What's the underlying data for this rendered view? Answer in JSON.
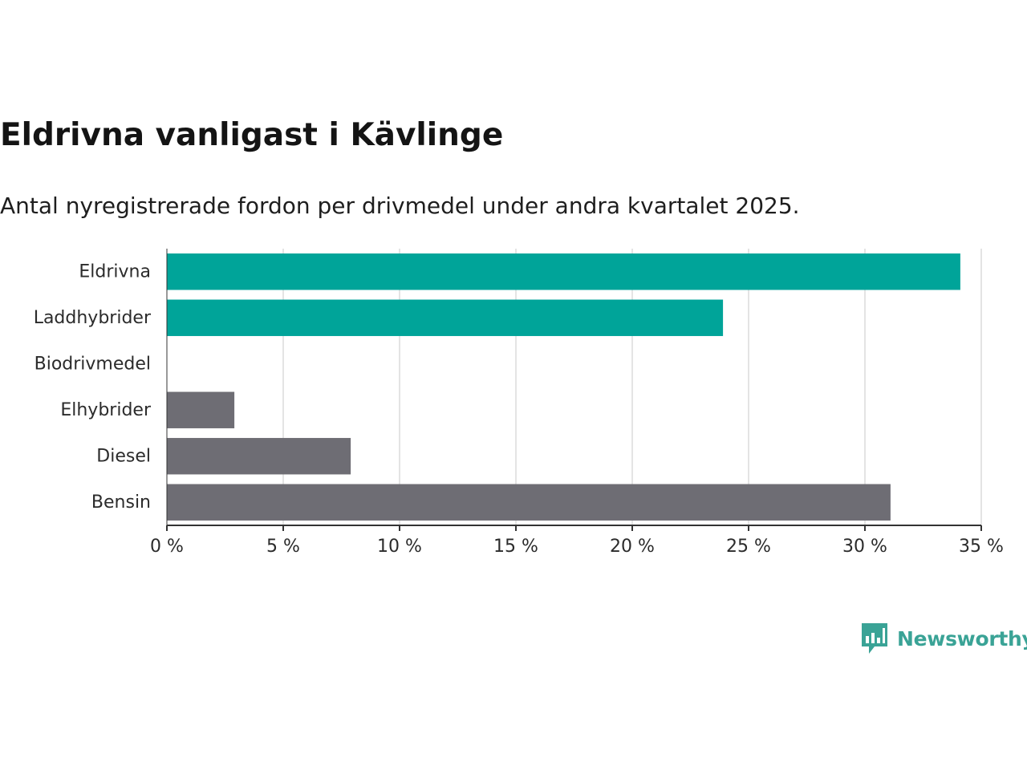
{
  "title": "Eldrivna vanligast i Kävlinge",
  "subtitle": "Antal nyregistrerade fordon per drivmedel under andra kvartalet 2025.",
  "brand": {
    "name": "Newsworthy",
    "logo_icon": "bar-chart-speech-bubble-icon",
    "color": "#3aa396"
  },
  "colors": {
    "highlight": "#00a499",
    "other": "#6e6d74",
    "grid": "#dcdcdc",
    "axis": "#333333"
  },
  "chart_data": {
    "type": "bar",
    "orientation": "horizontal",
    "categories": [
      "Eldrivna",
      "Laddhybrider",
      "Biodrivmedel",
      "Elhybrider",
      "Diesel",
      "Bensin"
    ],
    "values": [
      34.1,
      23.9,
      0,
      2.9,
      7.9,
      31.1
    ],
    "highlight": [
      true,
      true,
      false,
      false,
      false,
      false
    ],
    "xlim": [
      0,
      35
    ],
    "xticks": [
      0,
      5,
      10,
      15,
      20,
      25,
      30,
      35
    ],
    "xtick_labels": [
      "0 %",
      "5 %",
      "10 %",
      "15 %",
      "20 %",
      "25 %",
      "30 %",
      "35 %"
    ],
    "grid": true,
    "xlabel": "",
    "ylabel": ""
  }
}
